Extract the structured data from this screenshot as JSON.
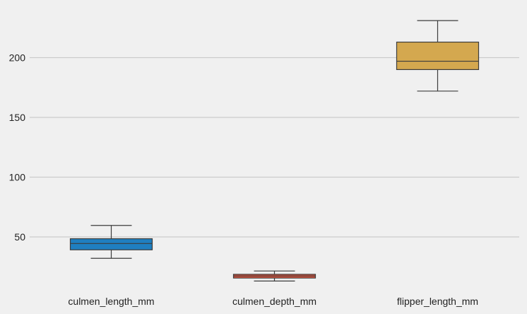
{
  "chart_data": {
    "type": "box",
    "categories": [
      "culmen_length_mm",
      "culmen_depth_mm",
      "flipper_length_mm"
    ],
    "boxes": [
      {
        "name": "culmen_length_mm",
        "min": 32.1,
        "q1": 39.2,
        "median": 44.5,
        "q3": 48.5,
        "max": 59.6,
        "color": "#1f7fc0"
      },
      {
        "name": "culmen_depth_mm",
        "min": 13.1,
        "q1": 15.6,
        "median": 17.3,
        "q3": 18.7,
        "max": 21.5,
        "color": "#e5533d"
      },
      {
        "name": "flipper_length_mm",
        "min": 172,
        "q1": 190,
        "median": 197,
        "q3": 213,
        "max": 231,
        "color": "#d4a84f"
      }
    ],
    "y_ticks": [
      50,
      100,
      150,
      200
    ],
    "ylim": [
      10,
      238
    ],
    "grid": "horizontal",
    "title": "",
    "xlabel": "",
    "ylabel": ""
  }
}
